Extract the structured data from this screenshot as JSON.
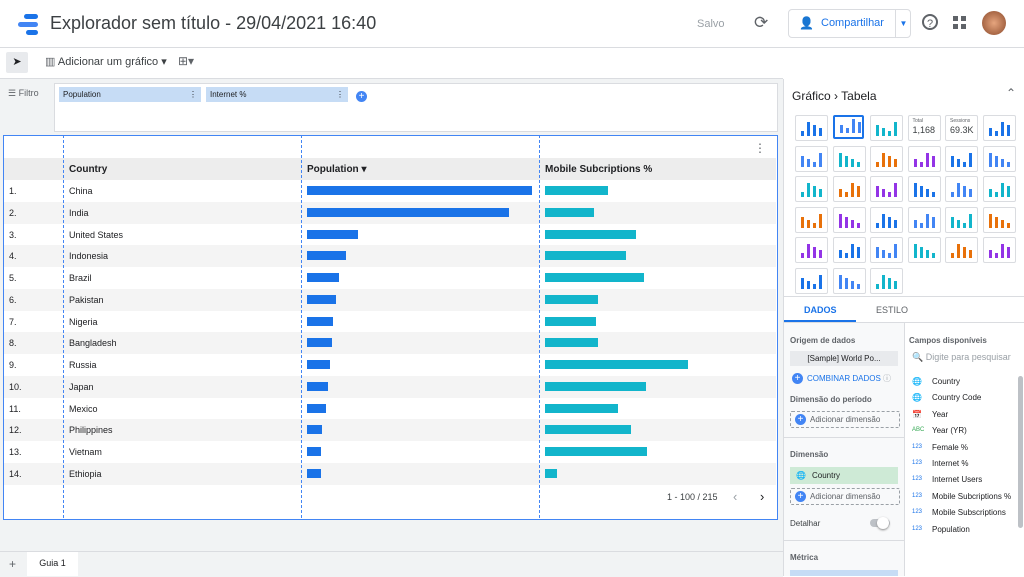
{
  "header": {
    "title": "Explorador sem título - 29/04/2021 16:40",
    "saved": "Salvo",
    "share": "Compartilhar"
  },
  "toolbar": {
    "add_chart": "Adicionar um gráfico"
  },
  "filter_bar": {
    "label": "Filtro",
    "chips": [
      "Population",
      "Internet %"
    ]
  },
  "table": {
    "columns": [
      "Country",
      "Population",
      "Mobile Subcriptions %"
    ],
    "rows": [
      {
        "index": "1.",
        "country": "China",
        "population": 1390000000,
        "mobile": 69
      },
      {
        "index": "2.",
        "country": "India",
        "population": 1248000000,
        "mobile": 54
      },
      {
        "index": "3.",
        "country": "United States",
        "population": 315000000,
        "mobile": 100
      },
      {
        "index": "4.",
        "country": "Indonesia",
        "population": 241000000,
        "mobile": 89
      },
      {
        "index": "5.",
        "country": "Brazil",
        "population": 198000000,
        "mobile": 109
      },
      {
        "index": "6.",
        "country": "Pakistan",
        "population": 179000000,
        "mobile": 58
      },
      {
        "index": "7.",
        "country": "Nigeria",
        "population": 161000000,
        "mobile": 56
      },
      {
        "index": "8.",
        "country": "Bangladesh",
        "population": 154000000,
        "mobile": 58
      },
      {
        "index": "9.",
        "country": "Russia",
        "population": 142000000,
        "mobile": 157
      },
      {
        "index": "10.",
        "country": "Japan",
        "population": 130000000,
        "mobile": 111
      },
      {
        "index": "11.",
        "country": "Mexico",
        "population": 117000000,
        "mobile": 80
      },
      {
        "index": "12.",
        "country": "Philippines",
        "population": 93000000,
        "mobile": 94
      },
      {
        "index": "13.",
        "country": "Vietnam",
        "population": 87000000,
        "mobile": 112
      },
      {
        "index": "14.",
        "country": "Ethiopia",
        "population": 86000000,
        "mobile": 13
      }
    ],
    "pagination": "1 - 100 / 215"
  },
  "panel": {
    "breadcrumb": [
      "Gráfico",
      "Tabela"
    ],
    "chart_icons": [
      {
        "small": "Total",
        "big": "1,168"
      },
      {
        "small": "Sessions",
        "big": "69.3K"
      }
    ],
    "tabs": [
      "DADOS",
      "ESTILO"
    ],
    "data_source_label": "Origem de dados",
    "data_source": "[Sample] World Po...",
    "blend": "COMBINAR DADOS",
    "date_dimension_label": "Dimensão do período",
    "add_dimension": "Adicionar dimensão",
    "dimension_label": "Dimensão",
    "dimension": "Country",
    "add_dimension_2": "Adicionar dimensão",
    "drill": "Detalhar",
    "metric_label": "Métrica",
    "fields_label": "Campos disponíveis",
    "search_placeholder": "Digite para pesquisar",
    "fields": [
      {
        "type": "geo",
        "name": "Country"
      },
      {
        "type": "geo",
        "name": "Country Code"
      },
      {
        "type": "date",
        "name": "Year"
      },
      {
        "type": "ABC",
        "name": "Year (YR)"
      },
      {
        "type": "123",
        "name": "Female %"
      },
      {
        "type": "123",
        "name": "Internet %"
      },
      {
        "type": "123",
        "name": "Internet Users"
      },
      {
        "type": "123",
        "name": "Mobile Subcriptions %"
      },
      {
        "type": "123",
        "name": "Mobile Subscriptions"
      },
      {
        "type": "123",
        "name": "Population"
      }
    ]
  },
  "sheet_tabs": [
    "Guia 1"
  ]
}
